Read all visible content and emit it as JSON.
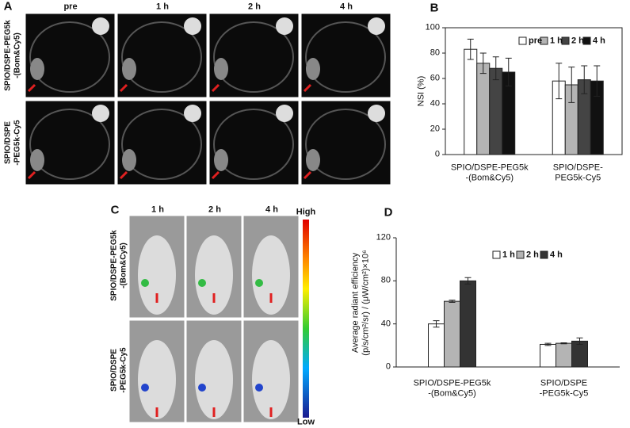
{
  "panels": {
    "a": "A",
    "b": "B",
    "c": "C",
    "d": "D"
  },
  "panel_a": {
    "columns": [
      "pre",
      "1 h",
      "2 h",
      "4 h"
    ],
    "rows": [
      "SPIO/DSPE-PEG5k\n-(Bom&Cy5)",
      "SPIO/DSPE\n-PEG5k-Cy5"
    ]
  },
  "panel_c": {
    "columns": [
      "1 h",
      "2 h",
      "4 h"
    ],
    "rows": [
      "SPIO/DSPE-PEG5k\n-(Bom&Cy5)",
      "SPIO/DSPE\n-PEG5k-Cy5"
    ],
    "colorbar_high": "High",
    "colorbar_low": "Low"
  },
  "chart_data": [
    {
      "type": "bar",
      "y_label": "NSI (%)",
      "categories": [
        "SPIO/DSPE-PEG5k\n-(Bom&Cy5)",
        "SPIO/DSPE-\nPEG5k-Cy5"
      ],
      "series": [
        {
          "name": "pre",
          "color": "#ffffff",
          "values": [
            83,
            58
          ],
          "errors": [
            8,
            14
          ]
        },
        {
          "name": "1 h",
          "color": "#b4b4b4",
          "values": [
            72,
            55
          ],
          "errors": [
            8,
            14
          ]
        },
        {
          "name": "2 h",
          "color": "#444444",
          "values": [
            68,
            59
          ],
          "errors": [
            9,
            11
          ]
        },
        {
          "name": "4 h",
          "color": "#111111",
          "values": [
            65,
            58
          ],
          "errors": [
            11,
            12
          ]
        }
      ],
      "ylim": [
        0,
        100
      ],
      "yticks": [
        0,
        20,
        40,
        60,
        80,
        100
      ],
      "legend": "top-right"
    },
    {
      "type": "bar",
      "y_label": "Average radiant efficiency\n(p/s/cm²/sr) / (μW/cm²)×10⁶",
      "categories": [
        "SPIO/DSPE-PEG5k\n-(Bom&Cy5)",
        "SPIO/DSPE\n-PEG5k-Cy5"
      ],
      "series": [
        {
          "name": "1 h",
          "color": "#ffffff",
          "values": [
            40,
            21
          ],
          "errors": [
            3,
            1
          ]
        },
        {
          "name": "2 h",
          "color": "#b4b4b4",
          "values": [
            61,
            22
          ],
          "errors": [
            1,
            0.5
          ]
        },
        {
          "name": "4 h",
          "color": "#333333",
          "values": [
            80,
            24
          ],
          "errors": [
            3,
            3
          ]
        }
      ],
      "ylim": [
        0,
        120
      ],
      "yticks": [
        0,
        40,
        80,
        120
      ],
      "legend": "top-center"
    }
  ]
}
